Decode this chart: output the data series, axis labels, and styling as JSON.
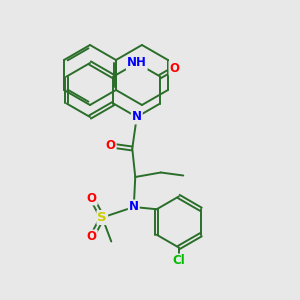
{
  "background_color": "#e8e8e8",
  "bond_color": "#2a6e2a",
  "atom_colors": {
    "N": "#0000ff",
    "O": "#ff0000",
    "S": "#cccc00",
    "Cl": "#00bb00",
    "H": "#888888",
    "C": "#2a6e2a"
  },
  "font_size": 8.5,
  "lw": 1.4
}
